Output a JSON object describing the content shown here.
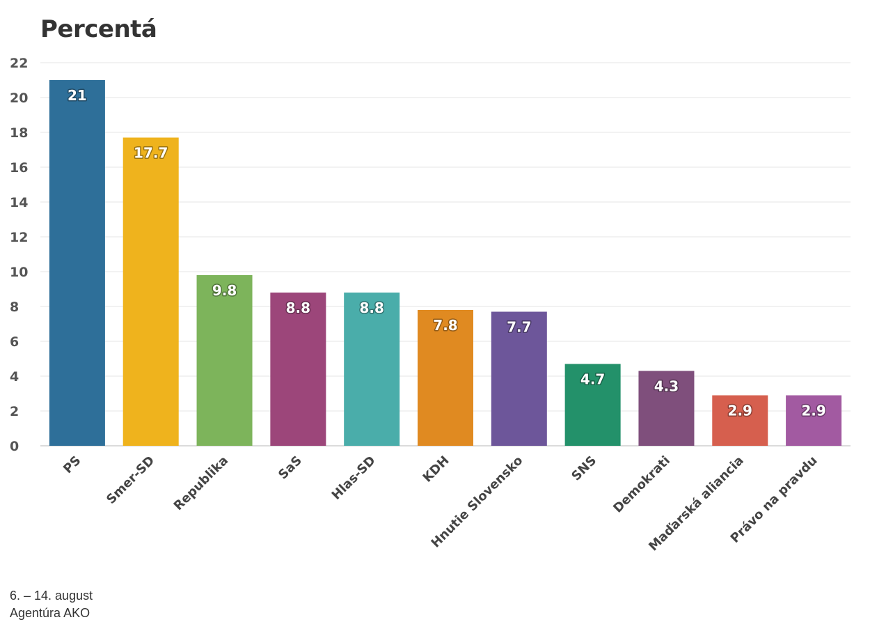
{
  "chart_data": {
    "type": "bar",
    "title": "Percentá",
    "categories": [
      "PS",
      "Smer-SD",
      "Republika",
      "SaS",
      "Hlas-SD",
      "KDH",
      "Hnutie Slovensko",
      "SNS",
      "Demokrati",
      "Maďarská aliancia",
      "Právo na pravdu"
    ],
    "values": [
      21,
      17.7,
      9.8,
      8.8,
      8.8,
      7.8,
      7.7,
      4.7,
      4.3,
      2.9,
      2.9
    ],
    "value_labels": [
      "21",
      "17.7",
      "9.8",
      "8.8",
      "8.8",
      "7.8",
      "7.7",
      "4.7",
      "4.3",
      "2.9",
      "2.9"
    ],
    "colors": [
      "#2e6f99",
      "#efb31d",
      "#7db45b",
      "#9c467a",
      "#4aadaa",
      "#e08a21",
      "#6d569a",
      "#23916a",
      "#7f4f7c",
      "#d65f4e",
      "#a25aa1"
    ],
    "ylim": [
      0,
      22
    ],
    "y_ticks": [
      0,
      2,
      4,
      6,
      8,
      10,
      12,
      14,
      16,
      18,
      20,
      22
    ],
    "grid": true,
    "legend": "none",
    "xlabel": "",
    "ylabel": ""
  },
  "footer": {
    "date": "6. – 14. august",
    "source": "Agentúra AKO"
  }
}
